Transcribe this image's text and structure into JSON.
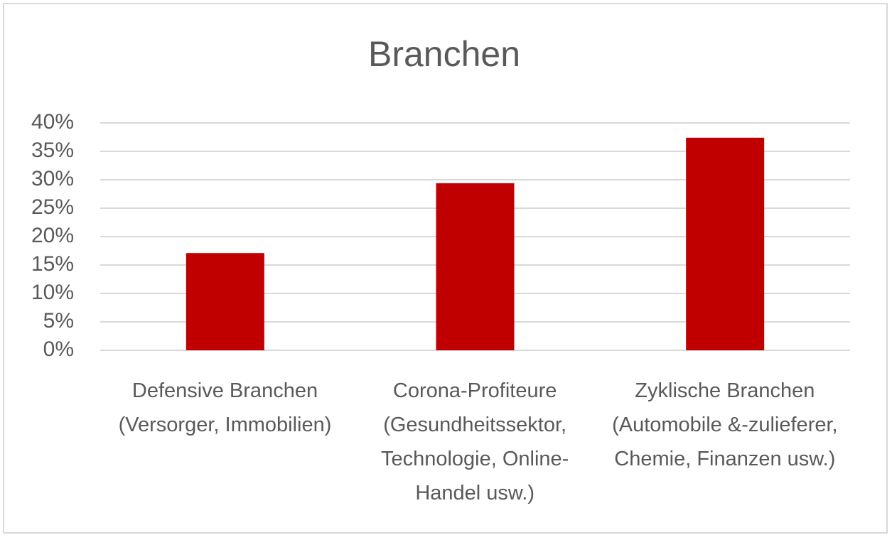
{
  "chart_data": {
    "type": "bar",
    "title": "Branchen",
    "categories": [
      "Defensive Branchen (Versorger, Immobilien)",
      "Corona-Profiteure (Gesundheitssektor, Technologie, Online-Handel usw.)",
      "Zyklische Branchen (Automobile &-zulieferer, Chemie, Finanzen usw.)"
    ],
    "values": [
      17.1,
      29.4,
      37.4
    ],
    "color": "#c00000",
    "ylim": [
      0,
      40
    ],
    "yticks": [
      {
        "value": 0,
        "label": "0%"
      },
      {
        "value": 5,
        "label": "5%"
      },
      {
        "value": 10,
        "label": "10%"
      },
      {
        "value": 15,
        "label": "15%"
      },
      {
        "value": 20,
        "label": "20%"
      },
      {
        "value": 25,
        "label": "25%"
      },
      {
        "value": 30,
        "label": "30%"
      },
      {
        "value": 35,
        "label": "35%"
      },
      {
        "value": 40,
        "label": "40%"
      }
    ],
    "grid": true
  }
}
